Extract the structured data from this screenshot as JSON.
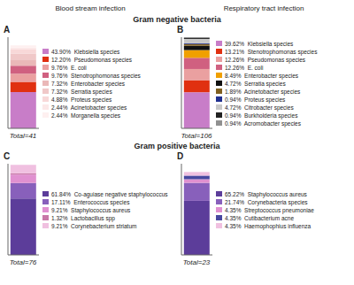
{
  "annotations": [
    "Blood stream infection",
    "Respiratory tract infection",
    "Gram negative bacteria",
    "Gram positive bacteria"
  ],
  "chart_data": [
    {
      "type": "bar",
      "stacked": true,
      "title": "A",
      "annotations": [
        "Total=41"
      ],
      "categories": [
        null
      ],
      "ylim": [
        0,
        110
      ],
      "tick_labels": false,
      "series": [
        {
          "name": "43.90%  Klebsiella species",
          "color": "#C87DC8",
          "values": [
            43.9
          ]
        },
        {
          "name": "12.20%  Pseudomonas species",
          "color": "#E03010",
          "values": [
            12.2
          ]
        },
        {
          "name": "9.76%  E. coli",
          "color": "#EAA0A0",
          "values": [
            9.76
          ]
        },
        {
          "name": "9.76%  Stenotrophomonas species",
          "color": "#D06080",
          "values": [
            9.76
          ]
        },
        {
          "name": "7.32%  Enterobacter species",
          "color": "#EAB8B8",
          "values": [
            7.32
          ]
        },
        {
          "name": "7.32%  Serratia species",
          "color": "#F0C8C8",
          "values": [
            7.32
          ]
        },
        {
          "name": "4.88%  Proteus species",
          "color": "#F8D8D8",
          "values": [
            4.88
          ]
        },
        {
          "name": "2.44%  Acinetobacter species",
          "color": "#FCE8E8",
          "values": [
            2.44
          ]
        },
        {
          "name": "2.44%  Morganella species",
          "color": "#FEF0F0",
          "values": [
            2.44
          ]
        }
      ]
    },
    {
      "type": "bar",
      "stacked": true,
      "title": "B",
      "annotations": [
        "Total=106"
      ],
      "categories": [
        null
      ],
      "ylim": [
        0,
        100
      ],
      "tick_labels": false,
      "series": [
        {
          "name": "39.62%  Klebsiella species",
          "color": "#C87DC8",
          "values": [
            39.62
          ]
        },
        {
          "name": "13.21%  Stenotrophomonas species",
          "color": "#E03010",
          "values": [
            13.21
          ]
        },
        {
          "name": "12.26%  Pseudomonas species",
          "color": "#EAA0A0",
          "values": [
            12.26
          ]
        },
        {
          "name": "12.26%  E. coli",
          "color": "#D06080",
          "values": [
            12.26
          ]
        },
        {
          "name": "8.49%  Enterobacter species",
          "color": "#F0A000",
          "values": [
            8.49
          ]
        },
        {
          "name": "4.72%  Serratia species",
          "color": "#111111",
          "values": [
            4.72
          ]
        },
        {
          "name": "1.89%  Acinetobacter species",
          "color": "#806020",
          "values": [
            1.89
          ]
        },
        {
          "name": "0.94%  Proteus species",
          "color": "#203090",
          "values": [
            0.94
          ]
        },
        {
          "name": "4.72%  Citrobacter species",
          "color": "#C8C8C8",
          "values": [
            4.72
          ]
        },
        {
          "name": "0.94%  Burkholderia species",
          "color": "#222222",
          "values": [
            0.94
          ]
        },
        {
          "name": "0.94%  Acromobacter species",
          "color": "#909090",
          "values": [
            0.94
          ]
        }
      ]
    },
    {
      "type": "bar",
      "stacked": true,
      "title": "C",
      "annotations": [
        "Total=76"
      ],
      "categories": [
        null
      ],
      "ylim": [
        0,
        100
      ],
      "tick_labels": false,
      "series": [
        {
          "name": "61.84%  Co-aguiase negative staphylococcus",
          "color": "#5C3D9A",
          "values": [
            61.84
          ]
        },
        {
          "name": "17.11%  Enterococcus species",
          "color": "#8860BB",
          "values": [
            17.11
          ]
        },
        {
          "name": "9.21%  Staphylococcus aureus",
          "color": "#E090D0",
          "values": [
            9.21
          ]
        },
        {
          "name": "1.32%  Lactobacillus spp",
          "color": "#C878A8",
          "values": [
            1.32
          ]
        },
        {
          "name": "9.21%  Corynebacterium striatum",
          "color": "#F0C0E0",
          "values": [
            9.21
          ]
        }
      ]
    },
    {
      "type": "bar",
      "stacked": true,
      "title": "D",
      "annotations": [
        "Total=23"
      ],
      "categories": [
        null
      ],
      "ylim": [
        0,
        110
      ],
      "tick_labels": false,
      "series": [
        {
          "name": "65.22%  Staphylococcus aureus",
          "color": "#5C3D9A",
          "values": [
            65.22
          ]
        },
        {
          "name": "21.74%  Corynebacteria species",
          "color": "#8860BB",
          "values": [
            21.74
          ]
        },
        {
          "name": "4.35%  Streptococcus pneumoniae",
          "color": "#E090D0",
          "values": [
            4.35
          ]
        },
        {
          "name": "4.35%  Cutibacterium acne",
          "color": "#4848A0",
          "values": [
            4.35
          ]
        },
        {
          "name": "4.35%  Haemophophius influenza",
          "color": "#F0C0E0",
          "values": [
            4.35
          ]
        }
      ]
    }
  ]
}
